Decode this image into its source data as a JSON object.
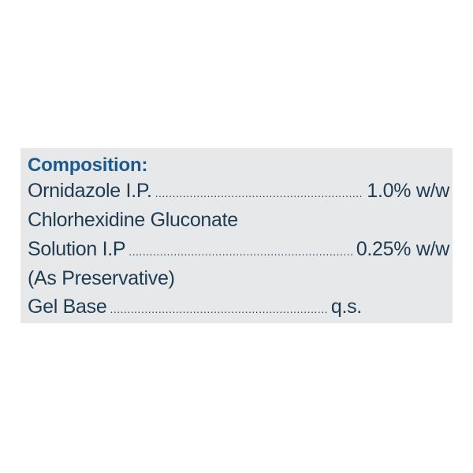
{
  "composition": {
    "heading": "Composition:",
    "rows": [
      {
        "label": "Ornidazole I.P.",
        "value": "1.0% w/w"
      },
      {
        "label": "Chlorhexidine Gluconate"
      },
      {
        "label": "Solution I.P",
        "value": "0.25% w/w"
      },
      {
        "label": "(As Preservative)"
      },
      {
        "label": "Gel Base",
        "value": "q.s."
      }
    ]
  },
  "colors": {
    "heading": "#1c5a8c",
    "text": "#1f3b50",
    "panel": "#e7e8ea"
  }
}
